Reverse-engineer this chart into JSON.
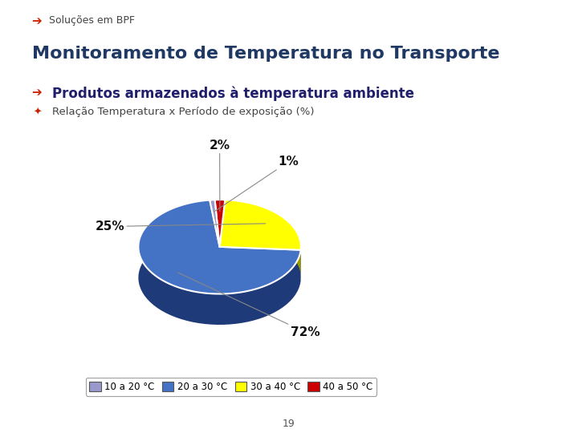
{
  "title": "Monitoramento de Temperatura no Transporte",
  "subtitle": "Produtos armazenados à temperatura ambiente",
  "subtitle2": "Relação Temperatura x Período de exposição (%)",
  "header": "Soluções em BPF",
  "page_number": "19",
  "sizes": [
    72,
    25,
    2,
    1
  ],
  "pct_labels": [
    "72%",
    "25%",
    "2%",
    "1%"
  ],
  "legend_labels": [
    "10 a 20 °C",
    "20 a 30 °C",
    "30 a 40 °C",
    "40 a 50 °C"
  ],
  "slice_colors": [
    "#4472C4",
    "#FFFF00",
    "#CC0000",
    "#9999CC"
  ],
  "slice_colors_dark": [
    "#1F3A78",
    "#999900",
    "#880000",
    "#555588"
  ],
  "background_color": "#FFFFFF",
  "title_color": "#1F3864",
  "text_color": "#222222",
  "startangle": 97,
  "depth": 0.12,
  "label_lines": true
}
